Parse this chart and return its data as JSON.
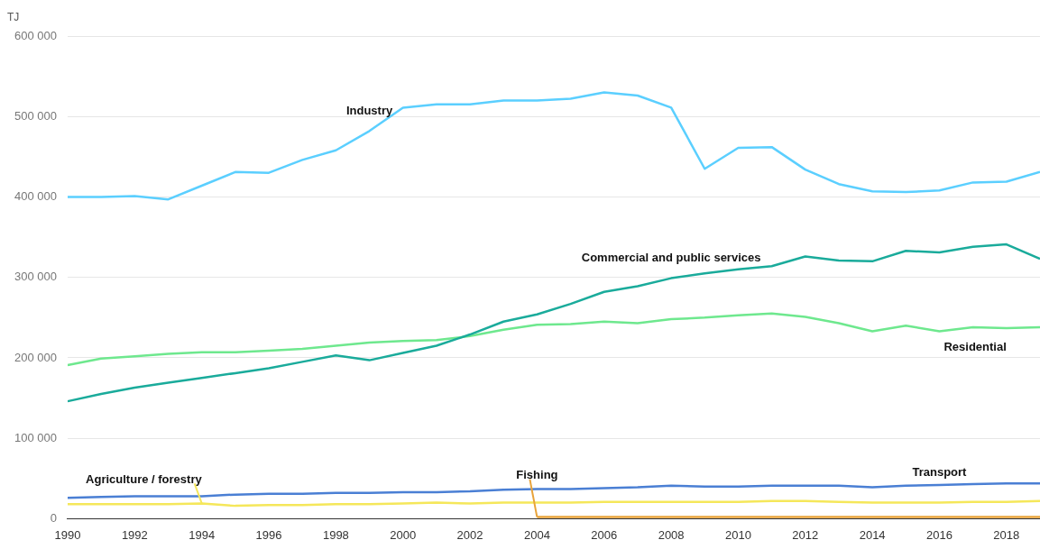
{
  "chart_data": {
    "type": "line",
    "ylabel": "TJ",
    "x": [
      1990,
      1991,
      1992,
      1993,
      1994,
      1995,
      1996,
      1997,
      1998,
      1999,
      2000,
      2001,
      2002,
      2003,
      2004,
      2005,
      2006,
      2007,
      2008,
      2009,
      2010,
      2011,
      2012,
      2013,
      2014,
      2015,
      2016,
      2017,
      2018,
      2019
    ],
    "xlim": [
      1990,
      2019
    ],
    "xticks": [
      1990,
      1992,
      1994,
      1996,
      1998,
      2000,
      2002,
      2004,
      2006,
      2008,
      2010,
      2012,
      2014,
      2016,
      2018
    ],
    "ylim": [
      0,
      600000
    ],
    "yticks": [
      {
        "value": 0,
        "label": "0"
      },
      {
        "value": 100000,
        "label": "100 000"
      },
      {
        "value": 200000,
        "label": "200 000"
      },
      {
        "value": 300000,
        "label": "300 000"
      },
      {
        "value": 400000,
        "label": "400 000"
      },
      {
        "value": 500000,
        "label": "500 000"
      },
      {
        "value": 600000,
        "label": "600 000"
      }
    ],
    "grid": "y",
    "legend": false,
    "marker": "none",
    "line_style": "solid",
    "series": [
      {
        "name": "Industry",
        "color": "#5bcfff",
        "values": [
          400000,
          400000,
          401000,
          397000,
          414000,
          431000,
          430000,
          446000,
          458000,
          482000,
          511000,
          515000,
          515000,
          520000,
          520000,
          522000,
          530000,
          526000,
          511000,
          435000,
          461000,
          462000,
          434000,
          416000,
          407000,
          406000,
          408000,
          418000,
          419000,
          431000
        ]
      },
      {
        "name": "Commercial and public services",
        "color": "#1aab9b",
        "values": [
          146000,
          155000,
          163000,
          169000,
          175000,
          181000,
          187000,
          195000,
          203000,
          197000,
          206000,
          215000,
          229000,
          245000,
          254000,
          267000,
          282000,
          289000,
          299000,
          305000,
          310000,
          314000,
          326000,
          321000,
          320000,
          333000,
          331000,
          338000,
          341000,
          323000
        ]
      },
      {
        "name": "Residential",
        "color": "#6ee88e",
        "values": [
          191000,
          199000,
          202000,
          205000,
          207000,
          207000,
          209000,
          211000,
          215000,
          219000,
          221000,
          222000,
          227000,
          235000,
          241000,
          242000,
          245000,
          243000,
          248000,
          250000,
          253000,
          255000,
          251000,
          243000,
          233000,
          240000,
          233000,
          238000,
          237000,
          238000
        ]
      },
      {
        "name": "Transport",
        "color": "#4a7fd4",
        "values": [
          26000,
          27000,
          28000,
          28000,
          28000,
          30000,
          31000,
          31000,
          32000,
          32000,
          33000,
          33000,
          34000,
          36000,
          37000,
          37000,
          38000,
          39000,
          41000,
          40000,
          40000,
          41000,
          41000,
          41000,
          39000,
          41000,
          42000,
          43000,
          44000,
          44000
        ]
      },
      {
        "name": "Agriculture / forestry",
        "color": "#f5e75a",
        "values": [
          18000,
          18000,
          18000,
          18000,
          19000,
          16000,
          17000,
          17000,
          18000,
          18000,
          19000,
          20000,
          19000,
          20000,
          20000,
          20000,
          21000,
          21000,
          21000,
          21000,
          21000,
          22000,
          22000,
          21000,
          20000,
          20000,
          20000,
          21000,
          21000,
          22000
        ]
      },
      {
        "name": "Fishing",
        "color": "#e8a33a",
        "values": [
          null,
          null,
          null,
          null,
          null,
          null,
          null,
          null,
          null,
          null,
          null,
          null,
          null,
          null,
          2000,
          2000,
          2000,
          2000,
          2000,
          2000,
          2000,
          2000,
          2000,
          2000,
          2000,
          2000,
          2000,
          2000,
          2000,
          2000
        ]
      }
    ]
  }
}
